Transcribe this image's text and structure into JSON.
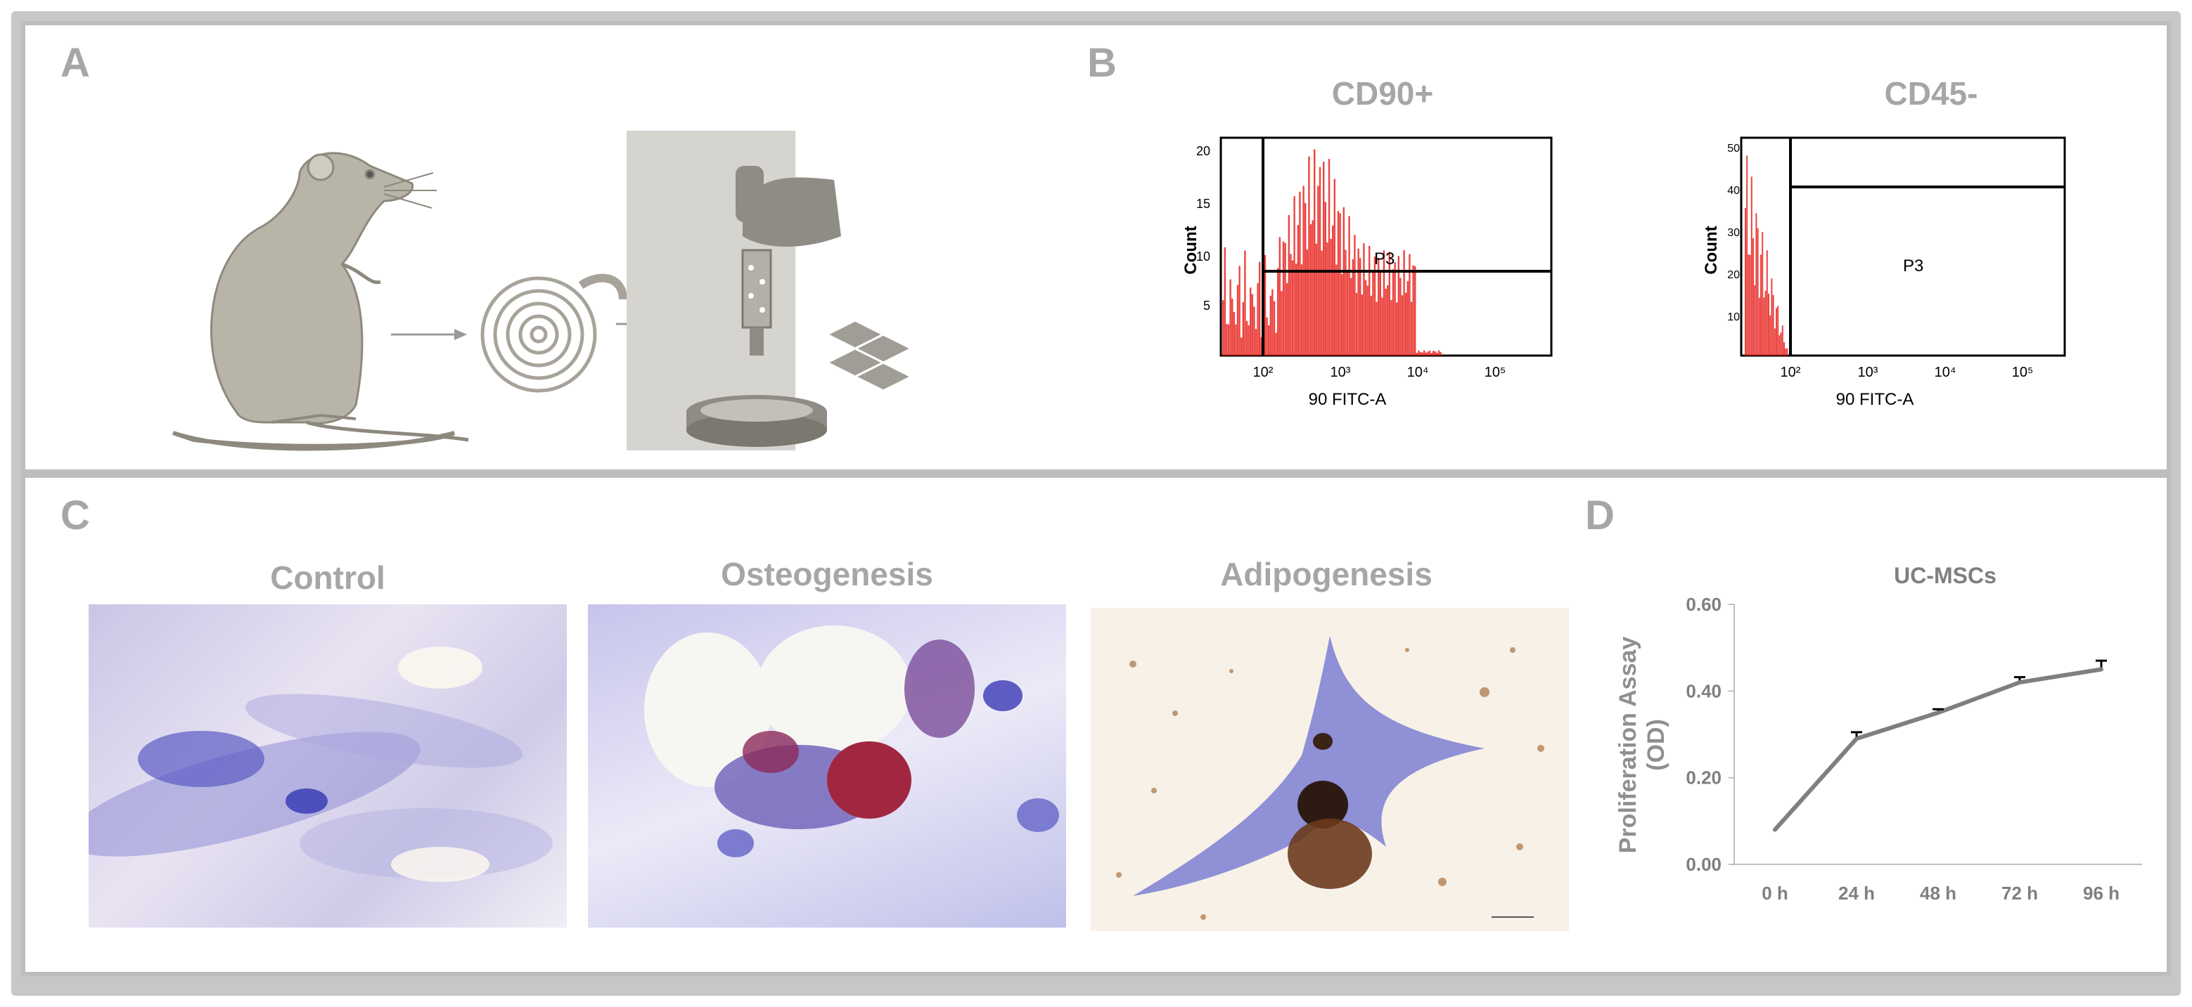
{
  "panels": {
    "a": {
      "letter": "A"
    },
    "b": {
      "letter": "B",
      "left_plot": {
        "title": "CD90+",
        "ylabel": "Count",
        "xlabel": "90 FITC-A",
        "gate": "P3",
        "yticks": [
          "5",
          "10",
          "15",
          "20"
        ],
        "xticks": [
          "10²",
          "10³",
          "10⁴",
          "10⁵"
        ]
      },
      "right_plot": {
        "title": "CD45-",
        "ylabel": "Count",
        "xlabel": "90 FITC-A",
        "gate": "P3",
        "yticks": [
          "10",
          "20",
          "30",
          "40",
          "50"
        ],
        "xticks": [
          "10²",
          "10³",
          "10⁴",
          "10⁵"
        ]
      }
    },
    "c": {
      "letter": "C",
      "images": [
        "Control",
        "Osteogenesis",
        "Adipogenesis"
      ]
    },
    "d": {
      "letter": "D"
    }
  },
  "colors": {
    "histogram": "#e8231e",
    "label_grey": "#a6a6a6",
    "line": "#7f7f7f"
  },
  "chart_data": {
    "type": "line",
    "title": "UC-MSCs",
    "xlabel": "",
    "ylabel": "Proliferation Assay (OD)",
    "categories": [
      "0 h",
      "24 h",
      "48 h",
      "72 h",
      "96 h"
    ],
    "values": [
      0.08,
      0.29,
      0.35,
      0.42,
      0.45
    ],
    "errors": [
      0.0,
      0.015,
      0.008,
      0.012,
      0.02
    ],
    "ylim": [
      0,
      0.6
    ],
    "yticks": [
      "0.00",
      "0.20",
      "0.40",
      "0.60"
    ],
    "grid": false
  }
}
